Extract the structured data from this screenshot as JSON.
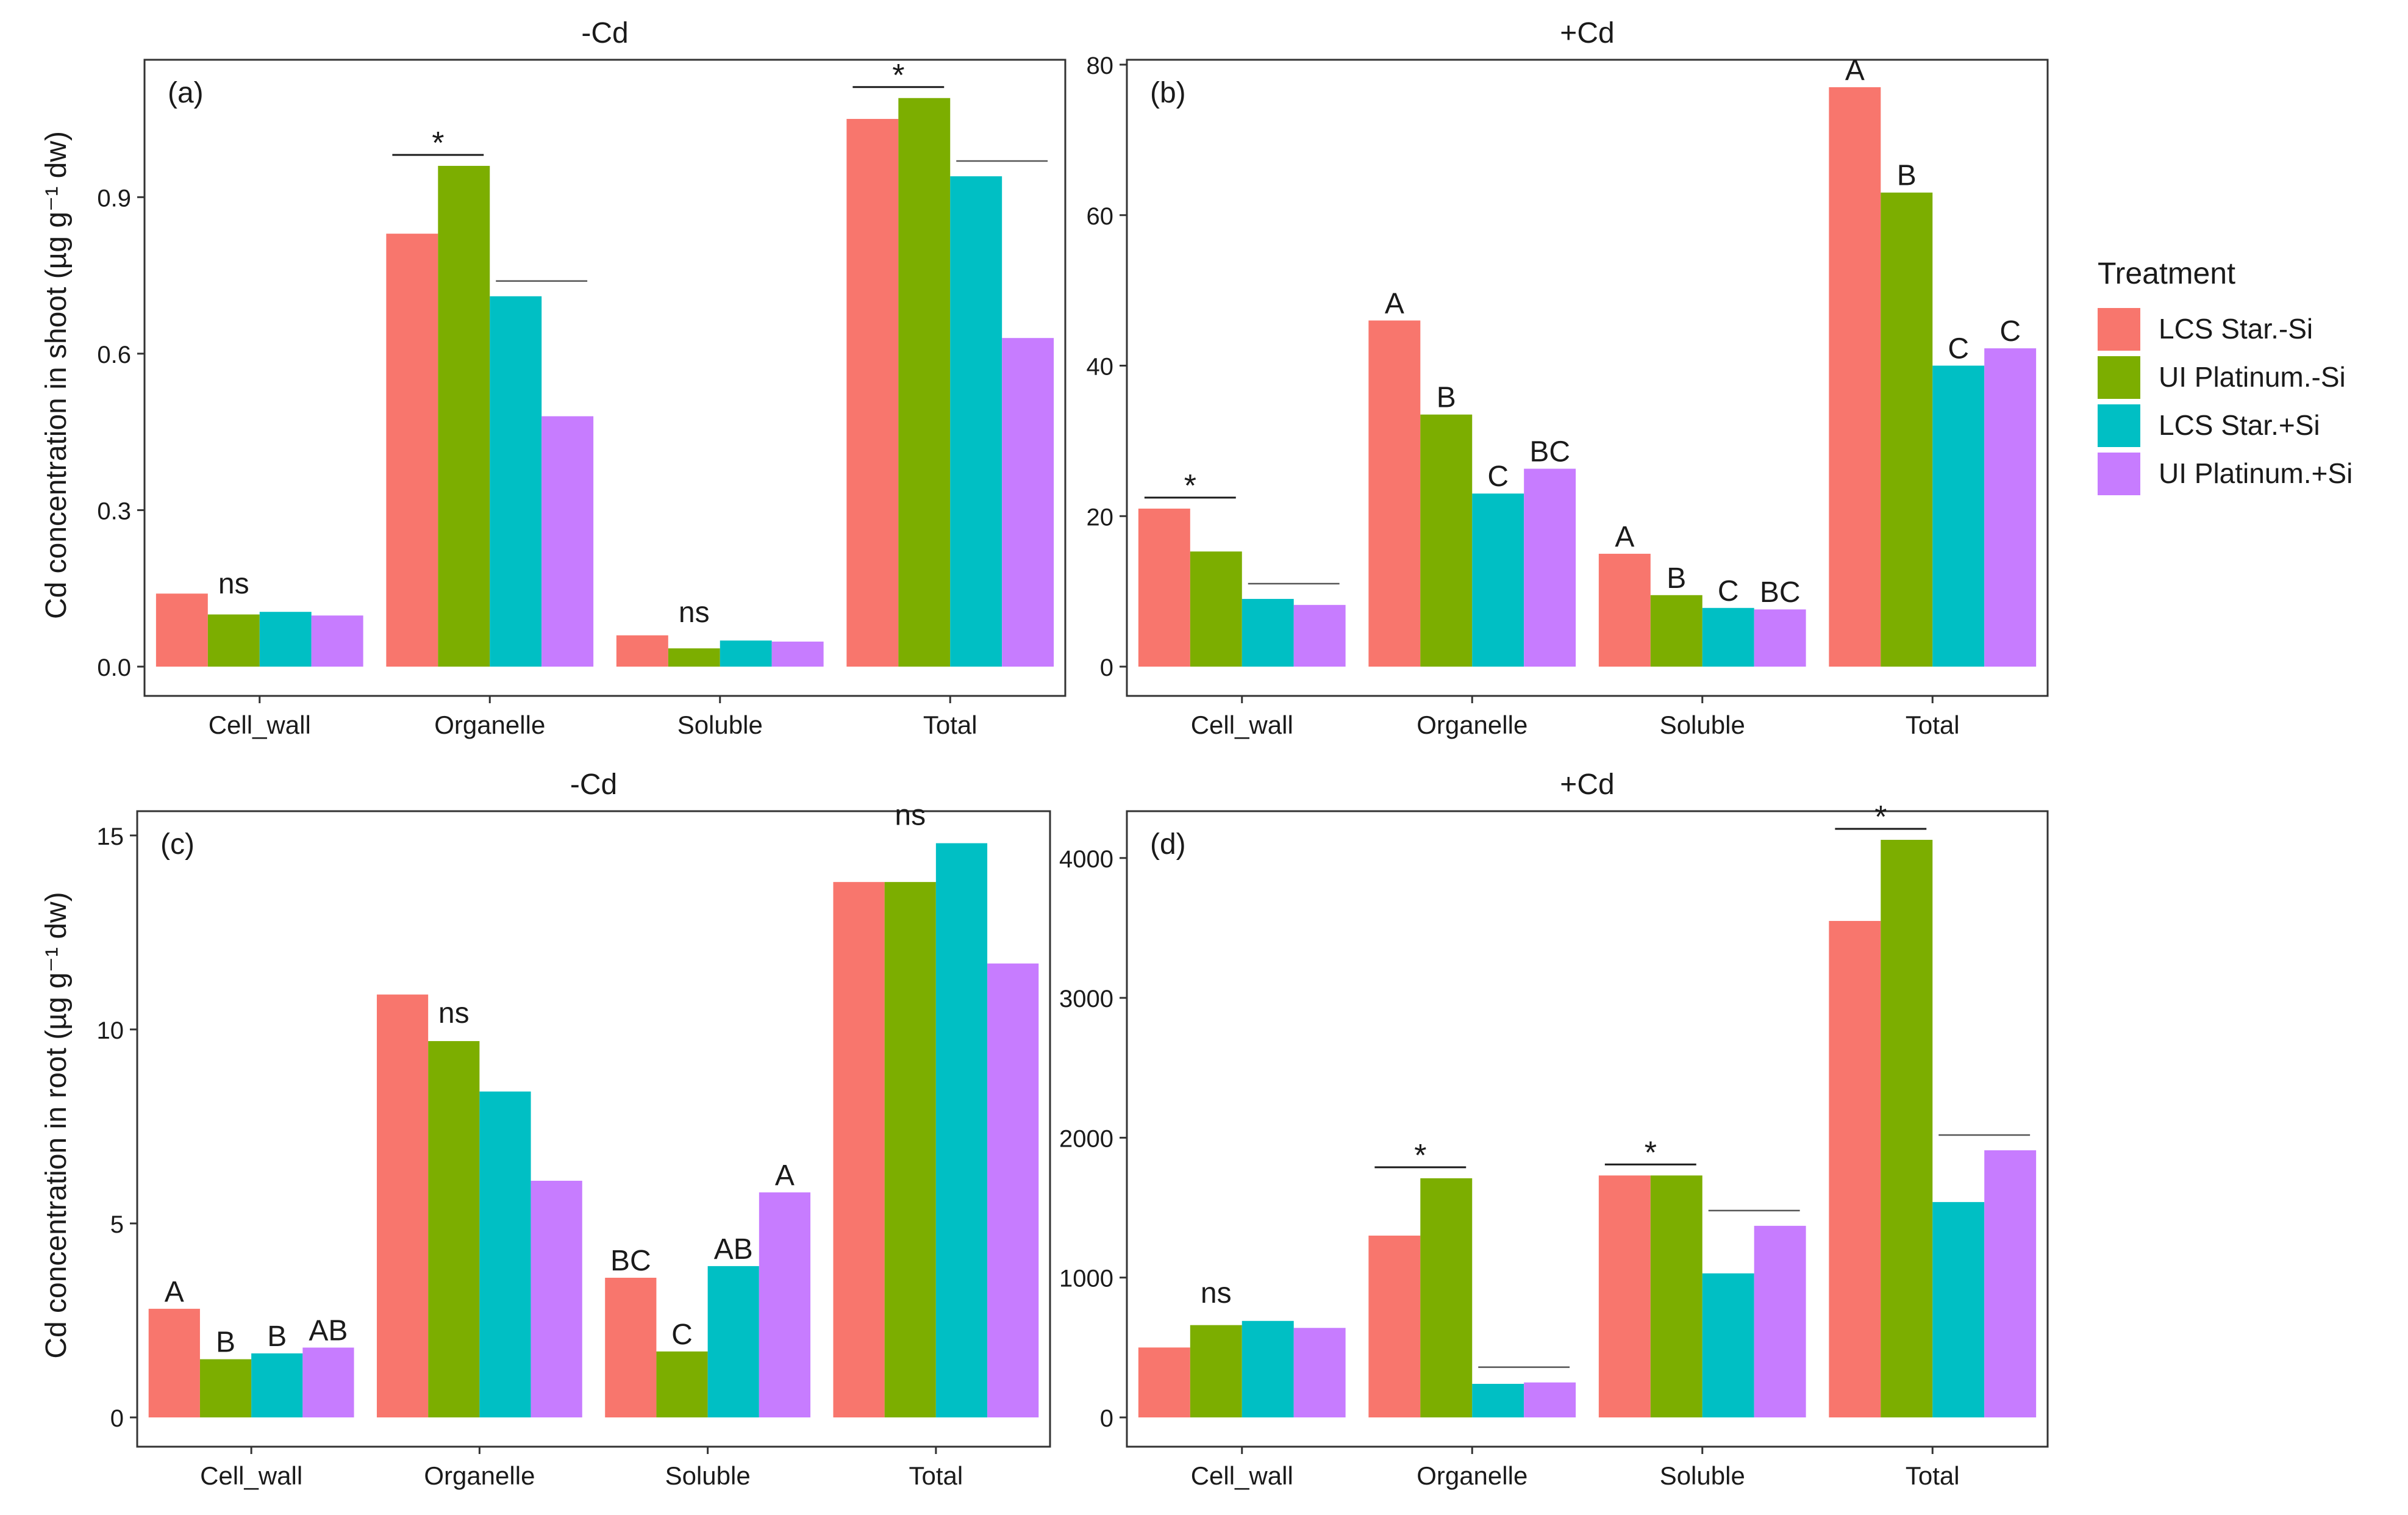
{
  "legend": {
    "title": "Treatment",
    "position": "right",
    "entries": [
      {
        "label": "LCS Star.-Si",
        "color": "#F8766D"
      },
      {
        "label": "UI Platinum.-Si",
        "color": "#7CAE00"
      },
      {
        "label": "LCS Star.+Si",
        "color": "#00BFC4"
      },
      {
        "label": "UI Platinum.+Si",
        "color": "#C77CFF"
      }
    ]
  },
  "y_labels": {
    "shoot": "Cd concentration in shoot (µg g⁻¹ dw)",
    "root": "Cd concentration in root (µg g⁻¹ dw)"
  },
  "chart_data": [
    {
      "id": "a",
      "type": "bar",
      "panel_label": "(a)",
      "title": "-Cd",
      "categories": [
        "Cell_wall",
        "Organelle",
        "Soluble",
        "Total"
      ],
      "ylim": [
        0,
        1.14
      ],
      "yticks": [
        "0.0",
        "0.3",
        "0.6",
        "0.9"
      ],
      "ytick_values": [
        0,
        0.3,
        0.6,
        0.9
      ],
      "series": [
        {
          "name": "LCS Star.-Si",
          "values": [
            0.14,
            0.83,
            0.06,
            1.05
          ]
        },
        {
          "name": "UI Platinum.-Si",
          "values": [
            0.1,
            0.96,
            0.035,
            1.09
          ]
        },
        {
          "name": "LCS Star.+Si",
          "values": [
            0.105,
            0.71,
            0.05,
            0.94
          ]
        },
        {
          "name": "UI Platinum.+Si",
          "values": [
            0.098,
            0.48,
            0.048,
            0.63
          ]
        }
      ],
      "annotations": [
        {
          "category": 0,
          "text": "ns",
          "kind": "center"
        },
        {
          "category": 1,
          "text": "*",
          "kind": "pair"
        },
        {
          "category": 1,
          "kind": "pair2"
        },
        {
          "category": 2,
          "text": "ns",
          "kind": "center"
        },
        {
          "category": 3,
          "text": "*",
          "kind": "pair"
        },
        {
          "category": 3,
          "kind": "pair2"
        }
      ]
    },
    {
      "id": "b",
      "type": "bar",
      "panel_label": "(b)",
      "title": "+Cd",
      "categories": [
        "Cell_wall",
        "Organelle",
        "Soluble",
        "Total"
      ],
      "ylim": [
        0,
        80
      ],
      "yticks": [
        "0",
        "20",
        "40",
        "60",
        "80"
      ],
      "ytick_values": [
        0,
        20,
        40,
        60,
        80
      ],
      "series": [
        {
          "name": "LCS Star.-Si",
          "values": [
            21,
            46,
            15,
            77
          ]
        },
        {
          "name": "UI Platinum.-Si",
          "values": [
            15.3,
            33.5,
            9.5,
            63
          ]
        },
        {
          "name": "LCS Star.+Si",
          "values": [
            9,
            23,
            7.8,
            40
          ]
        },
        {
          "name": "UI Platinum.+Si",
          "values": [
            8.2,
            26.3,
            7.6,
            42.3
          ]
        }
      ],
      "annotations": [
        {
          "category": 0,
          "text": "*",
          "kind": "pair"
        },
        {
          "category": 0,
          "kind": "pair2"
        },
        {
          "category": 1,
          "kind": "letters",
          "letters": [
            "A",
            "B",
            "C",
            "BC"
          ]
        },
        {
          "category": 2,
          "kind": "letters",
          "letters": [
            "A",
            "B",
            "C",
            "BC"
          ]
        },
        {
          "category": 3,
          "kind": "letters",
          "letters": [
            "A",
            "B",
            "C",
            "C"
          ]
        }
      ]
    },
    {
      "id": "c",
      "type": "bar",
      "panel_label": "(c)",
      "title": "-Cd",
      "categories": [
        "Cell_wall",
        "Organelle",
        "Soluble",
        "Total"
      ],
      "ylim": [
        0,
        15.5
      ],
      "yticks": [
        "0",
        "5",
        "10",
        "15"
      ],
      "ytick_values": [
        0,
        5,
        10,
        15
      ],
      "series": [
        {
          "name": "LCS Star.-Si",
          "values": [
            2.8,
            10.9,
            3.6,
            13.8
          ]
        },
        {
          "name": "UI Platinum.-Si",
          "values": [
            1.5,
            9.7,
            1.7,
            13.8
          ]
        },
        {
          "name": "LCS Star.+Si",
          "values": [
            1.65,
            8.4,
            3.9,
            14.8
          ]
        },
        {
          "name": "UI Platinum.+Si",
          "values": [
            1.8,
            6.1,
            5.8,
            11.7
          ]
        }
      ],
      "annotations": [
        {
          "category": 0,
          "kind": "letters",
          "letters": [
            "A",
            "B",
            "B",
            "AB"
          ]
        },
        {
          "category": 1,
          "text": "ns",
          "kind": "center"
        },
        {
          "category": 2,
          "kind": "letters",
          "letters": [
            "BC",
            "C",
            "AB",
            "A"
          ]
        },
        {
          "category": 3,
          "text": "ns",
          "kind": "center"
        }
      ]
    },
    {
      "id": "d",
      "type": "bar",
      "panel_label": "(d)",
      "title": "+Cd",
      "categories": [
        "Cell_wall",
        "Organelle",
        "Soluble",
        "Total"
      ],
      "ylim": [
        0,
        4300
      ],
      "yticks": [
        "0",
        "1000",
        "2000",
        "3000",
        "4000"
      ],
      "ytick_values": [
        0,
        1000,
        2000,
        3000,
        4000
      ],
      "series": [
        {
          "name": "LCS Star.-Si",
          "values": [
            500,
            1300,
            1730,
            3550
          ]
        },
        {
          "name": "UI Platinum.-Si",
          "values": [
            660,
            1710,
            1730,
            4130
          ]
        },
        {
          "name": "LCS Star.+Si",
          "values": [
            690,
            240,
            1030,
            1540
          ]
        },
        {
          "name": "UI Platinum.+Si",
          "values": [
            640,
            250,
            1370,
            1910
          ]
        }
      ],
      "annotations": [
        {
          "category": 0,
          "text": "ns",
          "kind": "center"
        },
        {
          "category": 1,
          "text": "*",
          "kind": "pair"
        },
        {
          "category": 1,
          "kind": "pair2"
        },
        {
          "category": 2,
          "text": "*",
          "kind": "pair"
        },
        {
          "category": 2,
          "kind": "pair2"
        },
        {
          "category": 3,
          "text": "*",
          "kind": "pair"
        },
        {
          "category": 3,
          "kind": "pair2"
        }
      ]
    }
  ]
}
